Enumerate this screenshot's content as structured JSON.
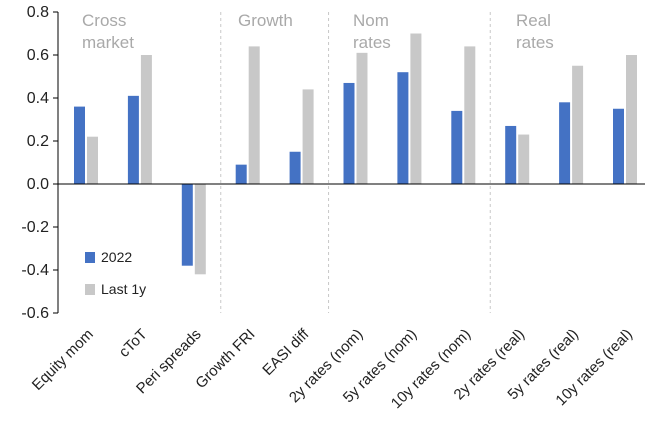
{
  "chart_data": {
    "type": "bar",
    "title": "",
    "xlabel": "",
    "ylabel": "",
    "ylim": [
      -0.6,
      0.8
    ],
    "yticks": [
      0.8,
      0.6,
      0.4,
      0.2,
      0.0,
      -0.2,
      -0.4,
      -0.6
    ],
    "ytick_labels": [
      "0.8",
      "0.6",
      "0.4",
      "0.2",
      "0.0",
      "-0.2",
      "-0.4",
      "-0.6"
    ],
    "categories": [
      "Equity mom",
      "cToT",
      "Peri spreads",
      "Growth FRI",
      "EASI diff",
      "2y rates (nom)",
      "5y rates (nom)",
      "10y rates (nom)",
      "2y rates (real)",
      "5y rates (real)",
      "10y rates (real)"
    ],
    "series": [
      {
        "name": "2022",
        "color": "#4472c4",
        "values": [
          0.36,
          0.41,
          -0.38,
          0.09,
          0.15,
          0.47,
          0.52,
          0.34,
          0.27,
          0.38,
          0.35
        ]
      },
      {
        "name": "Last 1y",
        "color": "#c8c8c8",
        "values": [
          0.22,
          0.6,
          -0.42,
          0.64,
          0.44,
          0.61,
          0.7,
          0.64,
          0.23,
          0.55,
          0.6
        ]
      }
    ],
    "groups": [
      {
        "lines": [
          "Cross",
          "market"
        ]
      },
      {
        "lines": [
          "Growth"
        ]
      },
      {
        "lines": [
          "Nom",
          "rates"
        ]
      },
      {
        "lines": [
          "Real",
          "rates"
        ]
      }
    ],
    "group_boundaries_after_category": [
      2,
      4,
      7
    ],
    "legend_position": "lower-left",
    "grid": false
  }
}
